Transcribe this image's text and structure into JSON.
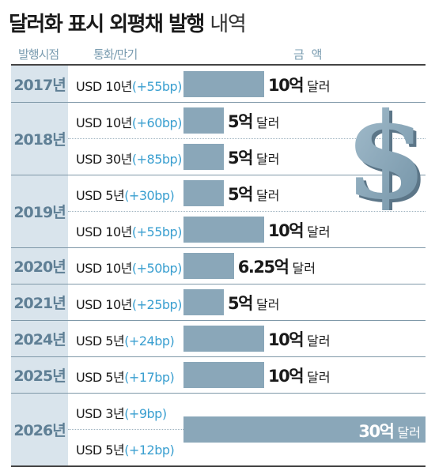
{
  "title": "달러화 표시 외평채 발행",
  "subtitle": "내역",
  "header": {
    "period": "발행시점",
    "terms": "통화/만기",
    "amount": "금 액"
  },
  "chart_data": {
    "type": "bar",
    "orientation": "horizontal",
    "title": "달러화 표시 외평채 발행 내역",
    "unit": "억 달러",
    "xlim": [
      0,
      30
    ],
    "groups": [
      {
        "year": "2017년",
        "rows": [
          {
            "terms": "USD 10년",
            "spread": "(+55bp)",
            "value": 10,
            "value_label": "10억",
            "unit_label": "달러"
          }
        ]
      },
      {
        "year": "2018년",
        "rows": [
          {
            "terms": "USD 10년",
            "spread": "(+60bp)",
            "value": 5,
            "value_label": "5억",
            "unit_label": "달러"
          },
          {
            "terms": "USD 30년",
            "spread": "(+85bp)",
            "value": 5,
            "value_label": "5억",
            "unit_label": "달러"
          }
        ]
      },
      {
        "year": "2019년",
        "rows": [
          {
            "terms": "USD 5년",
            "spread": "(+30bp)",
            "value": 5,
            "value_label": "5억",
            "unit_label": "달러"
          },
          {
            "terms": "USD 10년",
            "spread": "(+55bp)",
            "value": 10,
            "value_label": "10억",
            "unit_label": "달러"
          }
        ]
      },
      {
        "year": "2020년",
        "rows": [
          {
            "terms": "USD 10년",
            "spread": "(+50bp)",
            "value": 6.25,
            "value_label": "6.25억",
            "unit_label": "달러"
          }
        ]
      },
      {
        "year": "2021년",
        "rows": [
          {
            "terms": "USD 10년",
            "spread": "(+25bp)",
            "value": 5,
            "value_label": "5억",
            "unit_label": "달러"
          }
        ]
      },
      {
        "year": "2024년",
        "rows": [
          {
            "terms": "USD 5년",
            "spread": "(+24bp)",
            "value": 10,
            "value_label": "10억",
            "unit_label": "달러"
          }
        ]
      },
      {
        "year": "2025년",
        "rows": [
          {
            "terms": "USD 5년",
            "spread": "(+17bp)",
            "value": 10,
            "value_label": "10억",
            "unit_label": "달러"
          }
        ]
      },
      {
        "year": "2026년",
        "combined_bar": true,
        "value": 30,
        "value_label": "30억",
        "unit_label": "달러",
        "rows": [
          {
            "terms": "USD 3년",
            "spread": "(+9bp)"
          },
          {
            "terms": "USD 5년",
            "spread": "(+12bp)"
          }
        ]
      }
    ]
  },
  "colors": {
    "bar": "#8aa7b9",
    "year_cell": "#d9e4ec",
    "year_text": "#5f7f95",
    "spread_text": "#3a9fd0",
    "header_text": "#7a9cb0"
  },
  "icons": [
    "dollar-sign-icon"
  ]
}
